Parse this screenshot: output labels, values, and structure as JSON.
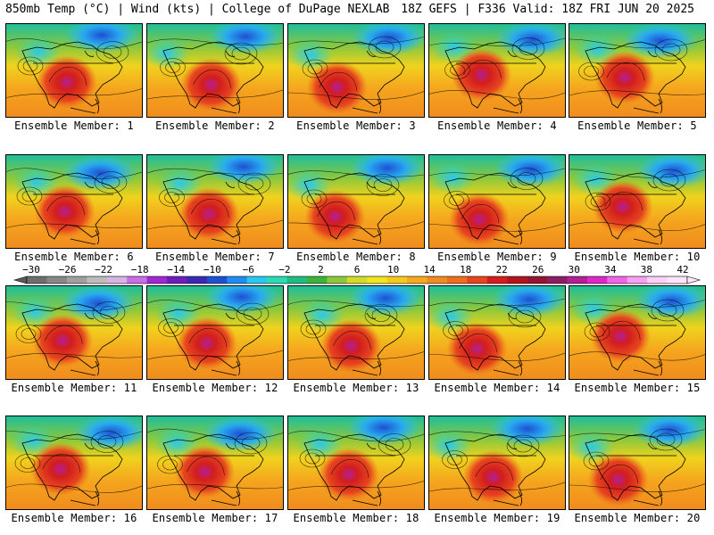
{
  "header": {
    "left": "850mb Temp (°C) | Wind (kts) | College of DuPage NEXLAB",
    "right": "18Z GEFS | F336 Valid: 18Z FRI JUN 20 2025"
  },
  "panels": [
    {
      "label": "Ensemble Member: 1"
    },
    {
      "label": "Ensemble Member: 2"
    },
    {
      "label": "Ensemble Member: 3"
    },
    {
      "label": "Ensemble Member: 4"
    },
    {
      "label": "Ensemble Member: 5"
    },
    {
      "label": "Ensemble Member: 6"
    },
    {
      "label": "Ensemble Member: 7"
    },
    {
      "label": "Ensemble Member: 8"
    },
    {
      "label": "Ensemble Member: 9"
    },
    {
      "label": "Ensemble Member: 10"
    },
    {
      "label": "Ensemble Member: 11"
    },
    {
      "label": "Ensemble Member: 12"
    },
    {
      "label": "Ensemble Member: 13"
    },
    {
      "label": "Ensemble Member: 14"
    },
    {
      "label": "Ensemble Member: 15"
    },
    {
      "label": "Ensemble Member: 16"
    },
    {
      "label": "Ensemble Member: 17"
    },
    {
      "label": "Ensemble Member: 18"
    },
    {
      "label": "Ensemble Member: 19"
    },
    {
      "label": "Ensemble Member: 20"
    }
  ],
  "colorbar": {
    "tick_labels": [
      "−30",
      "−26",
      "−22",
      "−18",
      "−14",
      "−10",
      "−6",
      "−2",
      "2",
      "6",
      "10",
      "14",
      "18",
      "22",
      "26",
      "30",
      "34",
      "38",
      "42"
    ],
    "colors": [
      "#6e6e6e",
      "#878787",
      "#a0a0a0",
      "#bcbcbc",
      "#d6b4e6",
      "#c86ee6",
      "#a028d2",
      "#6e1ebe",
      "#3c28b4",
      "#1e50d2",
      "#1e8cf0",
      "#28c8f0",
      "#28dcb4",
      "#1ebe82",
      "#3cb43c",
      "#8cc83c",
      "#d2dc28",
      "#f0e61e",
      "#f5c81e",
      "#f5aa1e",
      "#f08c1e",
      "#ec6e1e",
      "#e6461e",
      "#d21e1e",
      "#b4141e",
      "#961432",
      "#8c1e64",
      "#b41e96",
      "#dc28c8",
      "#f064e6",
      "#f5a0f0",
      "#fad2f8",
      "#ffe6ff"
    ]
  }
}
